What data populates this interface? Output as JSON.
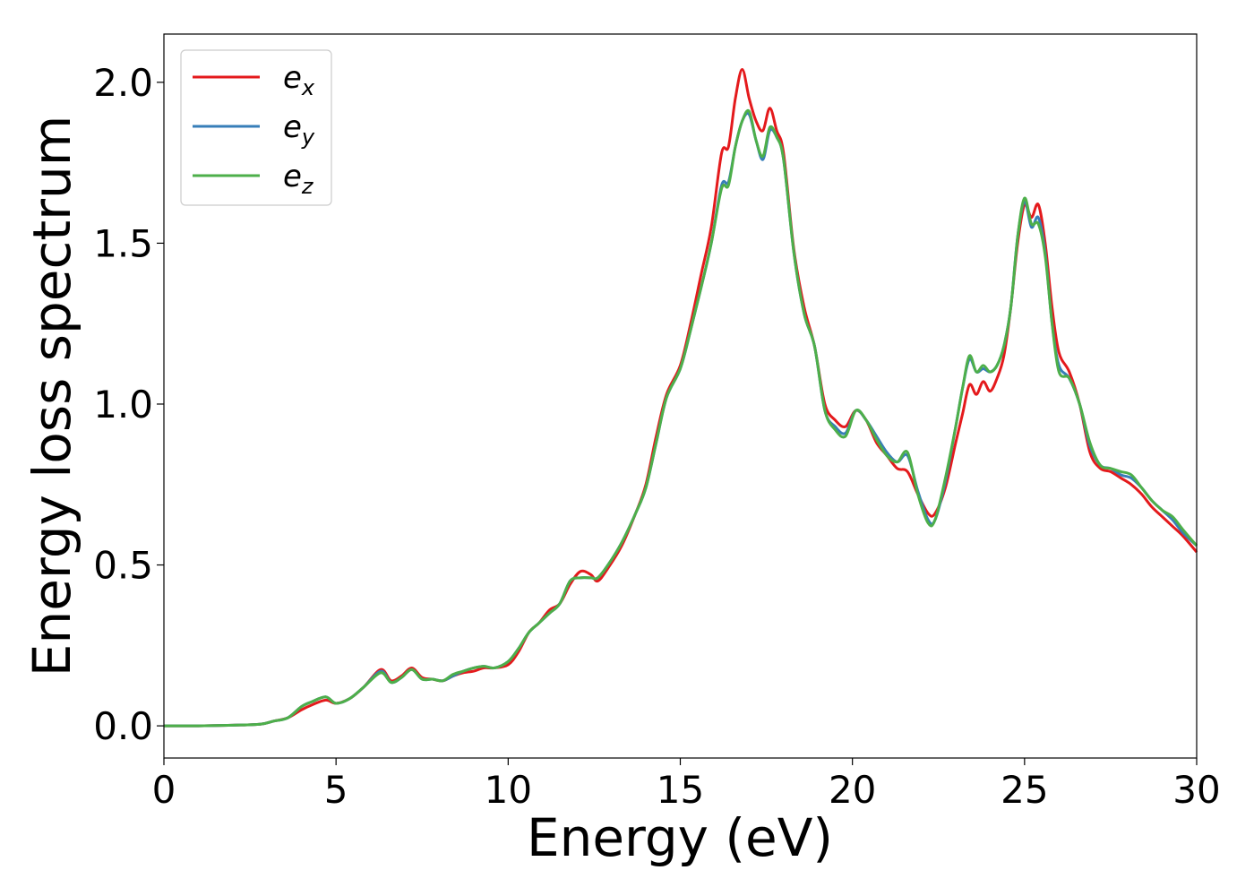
{
  "chart_data": {
    "type": "line",
    "xlabel": "Energy (eV)",
    "ylabel": "Energy loss spectrum",
    "xlim": [
      0,
      30
    ],
    "ylim": [
      -0.1,
      2.15
    ],
    "xticks": [
      0,
      5,
      10,
      15,
      20,
      25,
      30
    ],
    "xtick_labels": [
      "0",
      "5",
      "10",
      "15",
      "20",
      "25",
      "30"
    ],
    "yticks": [
      0.0,
      0.5,
      1.0,
      1.5,
      2.0
    ],
    "ytick_labels": [
      "0.0",
      "0.5",
      "1.0",
      "1.5",
      "2.0"
    ],
    "grid": false,
    "legend_position": "top-left",
    "x": [
      0,
      1,
      2,
      2.8,
      3.2,
      3.6,
      4.0,
      4.3,
      4.7,
      5.0,
      5.4,
      5.8,
      6.3,
      6.6,
      6.9,
      7.2,
      7.5,
      7.8,
      8.1,
      8.4,
      8.7,
      9.0,
      9.3,
      9.6,
      10.0,
      10.3,
      10.6,
      10.9,
      11.2,
      11.5,
      11.8,
      12.1,
      12.4,
      12.6,
      12.9,
      13.3,
      13.7,
      14.0,
      14.3,
      14.6,
      15.0,
      15.3,
      15.6,
      15.9,
      16.2,
      16.4,
      16.6,
      16.8,
      17.0,
      17.2,
      17.4,
      17.6,
      17.8,
      18.0,
      18.3,
      18.6,
      18.9,
      19.2,
      19.5,
      19.8,
      20.1,
      20.4,
      20.7,
      21.0,
      21.3,
      21.6,
      21.9,
      22.2,
      22.4,
      22.7,
      23.0,
      23.2,
      23.4,
      23.6,
      23.8,
      24.0,
      24.2,
      24.4,
      24.6,
      24.8,
      25.0,
      25.2,
      25.4,
      25.6,
      25.8,
      26.0,
      26.3,
      26.6,
      26.9,
      27.2,
      27.5,
      27.8,
      28.1,
      28.4,
      28.7,
      29.0,
      29.3,
      29.6,
      30.0
    ],
    "series": [
      {
        "name": "e_x",
        "color": "#e41a1c",
        "values": [
          0.0,
          0.0,
          0.002,
          0.005,
          0.015,
          0.025,
          0.05,
          0.065,
          0.08,
          0.07,
          0.085,
          0.12,
          0.175,
          0.14,
          0.155,
          0.18,
          0.15,
          0.145,
          0.14,
          0.155,
          0.165,
          0.17,
          0.18,
          0.18,
          0.19,
          0.23,
          0.29,
          0.32,
          0.36,
          0.38,
          0.44,
          0.48,
          0.47,
          0.45,
          0.49,
          0.56,
          0.66,
          0.75,
          0.9,
          1.03,
          1.12,
          1.25,
          1.4,
          1.55,
          1.78,
          1.8,
          1.95,
          2.04,
          1.95,
          1.88,
          1.85,
          1.92,
          1.85,
          1.78,
          1.48,
          1.3,
          1.18,
          1.0,
          0.95,
          0.93,
          0.98,
          0.95,
          0.88,
          0.84,
          0.8,
          0.79,
          0.72,
          0.66,
          0.66,
          0.74,
          0.88,
          0.97,
          1.06,
          1.03,
          1.07,
          1.04,
          1.08,
          1.15,
          1.3,
          1.5,
          1.62,
          1.58,
          1.62,
          1.5,
          1.3,
          1.16,
          1.1,
          1.0,
          0.85,
          0.8,
          0.79,
          0.77,
          0.75,
          0.72,
          0.68,
          0.65,
          0.62,
          0.59,
          0.54
        ]
      },
      {
        "name": "e_y",
        "color": "#377eb8",
        "values": [
          0.0,
          0.0,
          0.002,
          0.005,
          0.015,
          0.025,
          0.06,
          0.075,
          0.09,
          0.07,
          0.085,
          0.12,
          0.17,
          0.135,
          0.15,
          0.175,
          0.145,
          0.145,
          0.14,
          0.155,
          0.17,
          0.18,
          0.185,
          0.18,
          0.2,
          0.24,
          0.29,
          0.32,
          0.35,
          0.38,
          0.45,
          0.46,
          0.46,
          0.46,
          0.5,
          0.57,
          0.66,
          0.74,
          0.88,
          1.02,
          1.11,
          1.23,
          1.36,
          1.5,
          1.68,
          1.69,
          1.8,
          1.88,
          1.9,
          1.82,
          1.76,
          1.85,
          1.83,
          1.76,
          1.47,
          1.28,
          1.18,
          0.98,
          0.93,
          0.91,
          0.98,
          0.95,
          0.9,
          0.85,
          0.82,
          0.84,
          0.73,
          0.64,
          0.64,
          0.76,
          0.93,
          1.05,
          1.14,
          1.1,
          1.11,
          1.1,
          1.12,
          1.18,
          1.3,
          1.52,
          1.63,
          1.55,
          1.58,
          1.47,
          1.25,
          1.12,
          1.08,
          1.0,
          0.87,
          0.81,
          0.8,
          0.78,
          0.77,
          0.74,
          0.7,
          0.67,
          0.64,
          0.6,
          0.56
        ]
      },
      {
        "name": "e_z",
        "color": "#4daf4a",
        "values": [
          0.0,
          0.0,
          0.002,
          0.005,
          0.015,
          0.025,
          0.06,
          0.075,
          0.09,
          0.07,
          0.085,
          0.12,
          0.165,
          0.135,
          0.15,
          0.175,
          0.145,
          0.145,
          0.14,
          0.16,
          0.17,
          0.18,
          0.185,
          0.18,
          0.2,
          0.24,
          0.29,
          0.32,
          0.35,
          0.38,
          0.45,
          0.46,
          0.46,
          0.46,
          0.5,
          0.57,
          0.66,
          0.74,
          0.88,
          1.02,
          1.11,
          1.23,
          1.36,
          1.5,
          1.67,
          1.68,
          1.8,
          1.88,
          1.91,
          1.82,
          1.77,
          1.86,
          1.83,
          1.76,
          1.47,
          1.28,
          1.18,
          0.98,
          0.92,
          0.9,
          0.98,
          0.95,
          0.89,
          0.84,
          0.82,
          0.85,
          0.72,
          0.63,
          0.64,
          0.77,
          0.93,
          1.05,
          1.15,
          1.1,
          1.12,
          1.1,
          1.12,
          1.18,
          1.3,
          1.52,
          1.64,
          1.56,
          1.56,
          1.46,
          1.25,
          1.1,
          1.08,
          1.0,
          0.88,
          0.81,
          0.8,
          0.79,
          0.78,
          0.74,
          0.7,
          0.67,
          0.65,
          0.61,
          0.56
        ]
      }
    ]
  },
  "legend": {
    "items": [
      {
        "base": "e",
        "sub": "x",
        "color": "#e41a1c"
      },
      {
        "base": "e",
        "sub": "y",
        "color": "#377eb8"
      },
      {
        "base": "e",
        "sub": "z",
        "color": "#4daf4a"
      }
    ]
  }
}
